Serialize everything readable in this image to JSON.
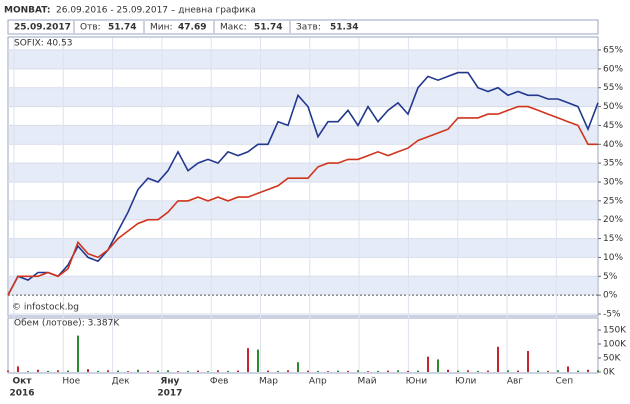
{
  "header": {
    "symbol": "MONBAT:",
    "range": "26.09.2016 - 25.09.2017 – дневна графика",
    "date": "25.09.2017",
    "stats": [
      {
        "label": "Отв:",
        "value": 51.74
      },
      {
        "label": "Мин:",
        "value": 47.69
      },
      {
        "label": "Макс:",
        "value": 51.74
      },
      {
        "label": "Затв:",
        "value": 51.34
      }
    ]
  },
  "x_axis": {
    "months": [
      "Окт",
      "Ное",
      "Дек",
      "Яну",
      "Фев",
      "Мар",
      "Апр",
      "Май",
      "Юни",
      "Юли",
      "Авг",
      "Сеп"
    ],
    "years": [
      "2016",
      null,
      null,
      "2017",
      null,
      null,
      null,
      null,
      null,
      null,
      null,
      null
    ]
  },
  "watermark": "© infostock.bg",
  "chart_data": [
    {
      "type": "line",
      "annotation": "SOFIX: 40.53",
      "annotation_color": "#d0341c",
      "series": [
        {
          "color": "#22388f",
          "values": [
            0,
            5,
            4,
            6,
            6,
            5,
            8,
            13,
            10,
            9,
            12,
            17,
            22,
            28,
            31,
            30,
            33,
            38,
            33,
            35,
            36,
            35,
            38,
            37,
            38,
            40,
            40,
            46,
            45,
            53,
            50,
            42,
            46,
            46,
            49,
            45,
            50,
            46,
            49,
            51,
            48,
            55,
            58,
            57,
            58,
            59,
            59,
            55,
            54,
            55,
            53,
            54,
            53,
            53,
            52,
            52,
            51,
            50,
            44,
            51
          ]
        },
        {
          "color": "#d0341c",
          "values": [
            0,
            5,
            5,
            5,
            6,
            5,
            7,
            14,
            11,
            10,
            12,
            15,
            17,
            19,
            20,
            20,
            22,
            25,
            25,
            26,
            25,
            26,
            25,
            26,
            26,
            27,
            28,
            29,
            31,
            31,
            31,
            34,
            35,
            35,
            36,
            36,
            37,
            38,
            37,
            38,
            39,
            41,
            42,
            43,
            44,
            47,
            47,
            47,
            48,
            48,
            49,
            50,
            50,
            49,
            48,
            47,
            46,
            45,
            40,
            40
          ]
        }
      ],
      "ylim": [
        -5,
        65
      ],
      "yticks": [
        {
          "value": -5,
          "label": "-5%"
        },
        {
          "value": 0,
          "label": "0%"
        },
        {
          "value": 5,
          "label": "5%"
        },
        {
          "value": 10,
          "label": "10%"
        },
        {
          "value": 15,
          "label": "15%"
        },
        {
          "value": 20,
          "label": "20%"
        },
        {
          "value": 25,
          "label": "25%"
        },
        {
          "value": 30,
          "label": "30%"
        },
        {
          "value": 35,
          "label": "35%"
        },
        {
          "value": 40,
          "label": "40%"
        },
        {
          "value": 45,
          "label": "45%"
        },
        {
          "value": 50,
          "label": "50%"
        },
        {
          "value": 55,
          "label": "55%"
        },
        {
          "value": 60,
          "label": "60%"
        },
        {
          "value": 65,
          "label": "65%"
        }
      ],
      "grid": true
    },
    {
      "type": "bar",
      "title": "Обем (лотове): 3.387K",
      "values": [
        5000,
        20000,
        3000,
        8000,
        4000,
        6000,
        5000,
        130000,
        10000,
        4000,
        6000,
        5000,
        3000,
        8000,
        4000,
        5000,
        6000,
        3000,
        4000,
        5000,
        3000,
        6000,
        4000,
        5000,
        85000,
        80000,
        5000,
        4000,
        6000,
        35000,
        5000,
        4000,
        3000,
        5000,
        4000,
        6000,
        3000,
        4000,
        5000,
        6000,
        4000,
        5000,
        55000,
        45000,
        8000,
        5000,
        6000,
        4000,
        5000,
        90000,
        6000,
        5000,
        75000,
        5000,
        4000,
        6000,
        20000,
        5000,
        8000,
        6000
      ],
      "colors": [
        "#c0262c",
        "#c0262c",
        "#2a8a2a",
        "#c0262c",
        "#2a8a2a",
        "#c0262c",
        "#2a8a2a",
        "#2a8a2a",
        "#c0262c",
        "#2a8a2a",
        "#c0262c",
        "#2a8a2a",
        "#c0262c",
        "#2a8a2a",
        "#c0262c",
        "#2a8a2a",
        "#2a8a2a",
        "#c0262c",
        "#2a8a2a",
        "#c0262c",
        "#2a8a2a",
        "#c0262c",
        "#2a8a2a",
        "#c0262c",
        "#c0262c",
        "#2a8a2a",
        "#c0262c",
        "#2a8a2a",
        "#c0262c",
        "#2a8a2a",
        "#c0262c",
        "#2a8a2a",
        "#c0262c",
        "#2a8a2a",
        "#c0262c",
        "#2a8a2a",
        "#c0262c",
        "#2a8a2a",
        "#c0262c",
        "#2a8a2a",
        "#c0262c",
        "#2a8a2a",
        "#c0262c",
        "#2a8a2a",
        "#c0262c",
        "#2a8a2a",
        "#c0262c",
        "#2a8a2a",
        "#c0262c",
        "#c0262c",
        "#2a8a2a",
        "#c0262c",
        "#c0262c",
        "#2a8a2a",
        "#c0262c",
        "#2a8a2a",
        "#c0262c",
        "#2a8a2a",
        "#c0262c",
        "#2a8a2a"
      ],
      "ylim": [
        0,
        150000
      ],
      "yticks": [
        {
          "value": 0,
          "label": "0K"
        },
        {
          "value": 50000,
          "label": "50K"
        },
        {
          "value": 100000,
          "label": "100K"
        },
        {
          "value": 150000,
          "label": "150K"
        }
      ]
    }
  ]
}
